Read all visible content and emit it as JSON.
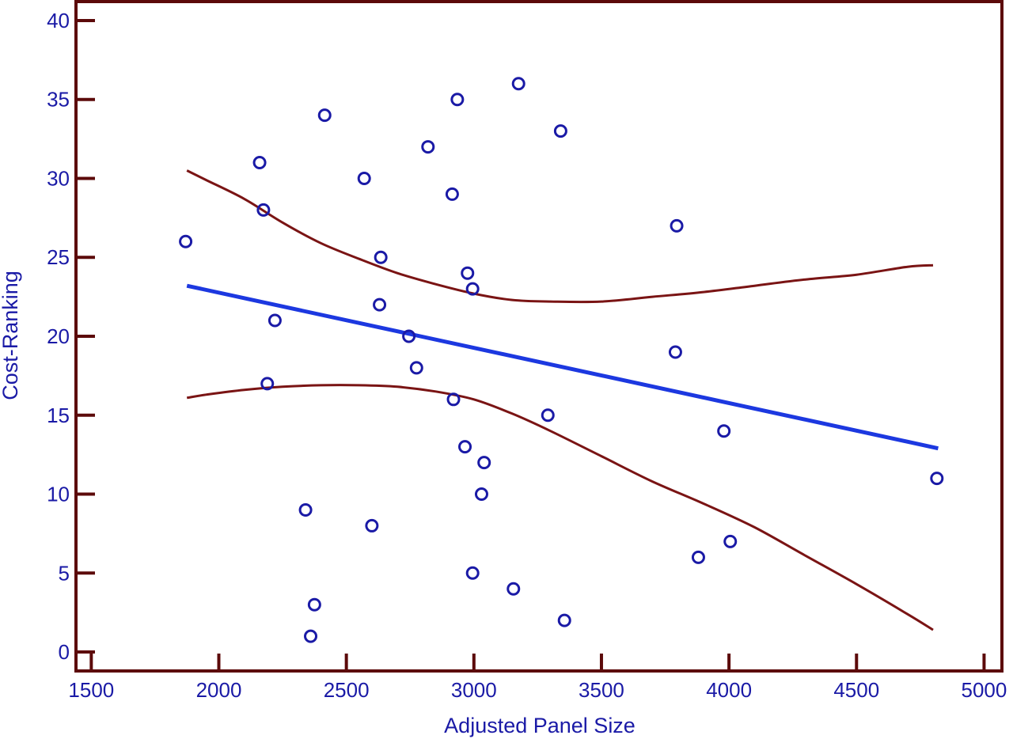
{
  "chart_data": {
    "type": "scatter",
    "title": "",
    "xlabel": "Adjusted Panel Size",
    "ylabel": "Cost-Ranking",
    "xlim": [
      1440,
      5070
    ],
    "ylim": [
      -1.2,
      41.2
    ],
    "x_ticks": [
      1500,
      2000,
      2500,
      3000,
      3500,
      4000,
      4500,
      5000
    ],
    "y_ticks": [
      0,
      5,
      10,
      15,
      20,
      25,
      30,
      35,
      40
    ],
    "x_tick_labels": [
      "1500",
      "2000",
      "2500",
      "3000",
      "3500",
      "4000",
      "4500",
      "5000"
    ],
    "y_tick_labels": [
      "0",
      "5",
      "10",
      "15",
      "20",
      "25",
      "30",
      "35",
      "40"
    ],
    "grid": false,
    "colors": {
      "frame": "#5c0a0a",
      "points": "#1a1aa6",
      "fit_line": "#1c38e0",
      "confidence_band": "#7a1414",
      "text": "#1a1aa6"
    },
    "points": [
      {
        "x": 1870,
        "y": 26
      },
      {
        "x": 2160,
        "y": 31
      },
      {
        "x": 2175,
        "y": 28
      },
      {
        "x": 2190,
        "y": 17
      },
      {
        "x": 2220,
        "y": 21
      },
      {
        "x": 2340,
        "y": 9
      },
      {
        "x": 2360,
        "y": 1
      },
      {
        "x": 2375,
        "y": 3
      },
      {
        "x": 2415,
        "y": 34
      },
      {
        "x": 2570,
        "y": 30
      },
      {
        "x": 2600,
        "y": 8
      },
      {
        "x": 2630,
        "y": 22
      },
      {
        "x": 2635,
        "y": 25
      },
      {
        "x": 2745,
        "y": 20
      },
      {
        "x": 2775,
        "y": 18
      },
      {
        "x": 2820,
        "y": 32
      },
      {
        "x": 2915,
        "y": 29
      },
      {
        "x": 2920,
        "y": 16
      },
      {
        "x": 2935,
        "y": 35
      },
      {
        "x": 2965,
        "y": 13
      },
      {
        "x": 2975,
        "y": 24
      },
      {
        "x": 2995,
        "y": 23
      },
      {
        "x": 2995,
        "y": 5
      },
      {
        "x": 3030,
        "y": 10
      },
      {
        "x": 3040,
        "y": 12
      },
      {
        "x": 3155,
        "y": 4
      },
      {
        "x": 3175,
        "y": 36
      },
      {
        "x": 3290,
        "y": 15
      },
      {
        "x": 3340,
        "y": 33
      },
      {
        "x": 3355,
        "y": 2
      },
      {
        "x": 3790,
        "y": 19
      },
      {
        "x": 3795,
        "y": 27
      },
      {
        "x": 3880,
        "y": 6
      },
      {
        "x": 3980,
        "y": 14
      },
      {
        "x": 4005,
        "y": 7
      },
      {
        "x": 4815,
        "y": 11
      }
    ],
    "fit_line": {
      "x": [
        1875,
        4820
      ],
      "y": [
        23.2,
        12.9
      ]
    },
    "confidence_band": {
      "upper": {
        "x": [
          1875,
          1950,
          2100,
          2250,
          2400,
          2550,
          2700,
          2850,
          3000,
          3150,
          3300,
          3500,
          3700,
          3900,
          4100,
          4300,
          4500,
          4700,
          4800
        ],
        "y": [
          30.5,
          29.9,
          28.7,
          27.2,
          25.9,
          24.9,
          24.0,
          23.3,
          22.7,
          22.3,
          22.2,
          22.2,
          22.5,
          22.8,
          23.2,
          23.6,
          23.9,
          24.4,
          24.5
        ]
      },
      "lower": {
        "x": [
          1875,
          1950,
          2100,
          2250,
          2400,
          2550,
          2700,
          2850,
          3000,
          3150,
          3300,
          3500,
          3700,
          3900,
          4100,
          4300,
          4500,
          4700,
          4800
        ],
        "y": [
          16.1,
          16.3,
          16.6,
          16.8,
          16.9,
          16.9,
          16.8,
          16.5,
          16.0,
          15.1,
          14.0,
          12.4,
          10.8,
          9.4,
          7.9,
          6.1,
          4.3,
          2.4,
          1.4
        ]
      }
    }
  }
}
